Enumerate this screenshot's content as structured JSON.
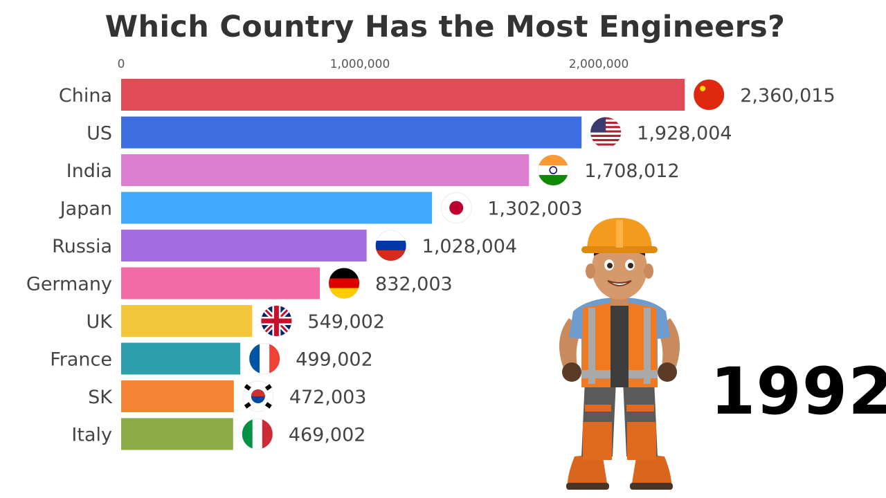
{
  "chart_data": {
    "type": "bar",
    "orientation": "horizontal",
    "title": "Which Country Has the Most Engineers?",
    "year": "1992",
    "xlim": [
      0,
      2500000
    ],
    "ticks": [
      {
        "value": 0,
        "label": "0"
      },
      {
        "value": 1000000,
        "label": "1,000,000"
      },
      {
        "value": 2000000,
        "label": "2,000,000"
      }
    ],
    "categories": [
      "China",
      "US",
      "India",
      "Japan",
      "Russia",
      "Germany",
      "UK",
      "France",
      "SK",
      "Italy"
    ],
    "values": [
      2360015,
      1928004,
      1708012,
      1302003,
      1028004,
      832003,
      549002,
      499002,
      472003,
      469002
    ],
    "value_labels": [
      "2,360,015",
      "1,928,004",
      "1,708,012",
      "1,302,003",
      "1,028,004",
      "832,003",
      "549,002",
      "499,002",
      "472,003",
      "469,002"
    ],
    "colors": [
      "#e04b55",
      "#3d6ee0",
      "#dc7fd0",
      "#3fa9fb",
      "#a36ce0",
      "#f26ba6",
      "#f3c63c",
      "#2e9fac",
      "#f58436",
      "#8caa45"
    ],
    "flags": [
      "china-flag-icon",
      "us-flag-icon",
      "india-flag-icon",
      "japan-flag-icon",
      "russia-flag-icon",
      "germany-flag-icon",
      "uk-flag-icon",
      "france-flag-icon",
      "south-korea-flag-icon",
      "italy-flag-icon"
    ],
    "grid": false,
    "legend": "none"
  },
  "decoration": {
    "illustration": "construction-worker-illustration"
  }
}
